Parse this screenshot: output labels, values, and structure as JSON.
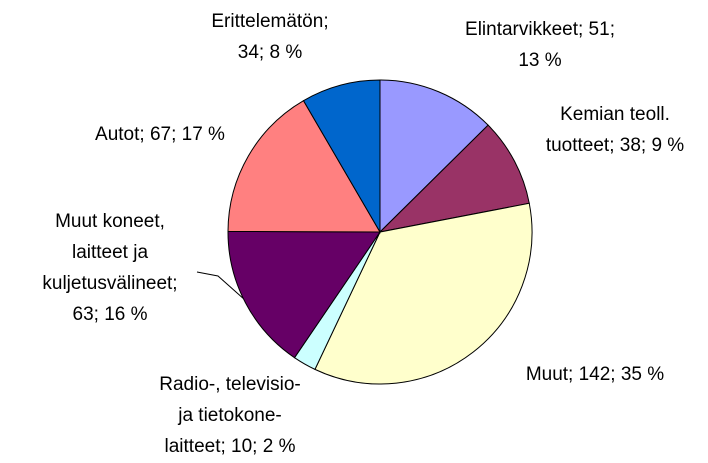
{
  "chart_data": {
    "type": "pie",
    "values": [
      51,
      38,
      142,
      10,
      63,
      67,
      34
    ],
    "value_labels": [
      [
        "Elintarvikkeet; 51;",
        "13 %"
      ],
      [
        "Kemian teoll.",
        "tuotteet; 38; 9 %"
      ],
      [
        "Muut; 142; 35 %"
      ],
      [
        "Radio-, televisio-",
        "ja tietokone-",
        "laitteet; 10; 2 %"
      ],
      [
        "Muut koneet,",
        "laitteet ja",
        "kuljetusvälineet;",
        "63; 16 %"
      ],
      [
        "Autot; 67; 17 %"
      ],
      [
        "Erittelemätön;",
        "34; 8 %"
      ]
    ],
    "colors": [
      "#9999ff",
      "#993366",
      "#ffffcc",
      "#ccffff",
      "#660066",
      "#ff8080",
      "#0066cc"
    ]
  }
}
